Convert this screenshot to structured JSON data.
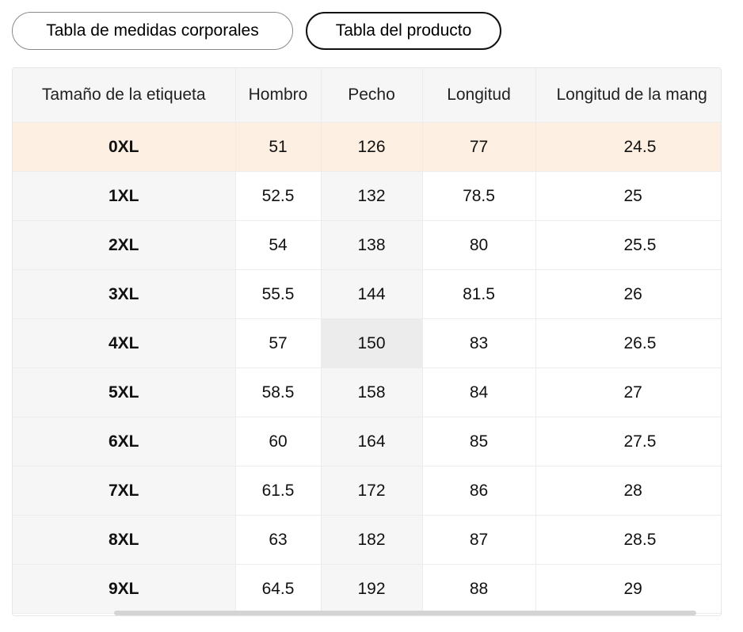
{
  "tabs": {
    "body_measurements": "Tabla de medidas corporales",
    "product": "Tabla del producto",
    "active": "product"
  },
  "table": {
    "headers": [
      "Tamaño de la etiqueta",
      "Hombro",
      "Pecho",
      "Longitud",
      "Longitud de la mang"
    ],
    "rows": [
      [
        "0XL",
        "51",
        "126",
        "77",
        "24.5"
      ],
      [
        "1XL",
        "52.5",
        "132",
        "78.5",
        "25"
      ],
      [
        "2XL",
        "54",
        "138",
        "80",
        "25.5"
      ],
      [
        "3XL",
        "55.5",
        "144",
        "81.5",
        "26"
      ],
      [
        "4XL",
        "57",
        "150",
        "83",
        "26.5"
      ],
      [
        "5XL",
        "58.5",
        "158",
        "84",
        "27"
      ],
      [
        "6XL",
        "60",
        "164",
        "85",
        "27.5"
      ],
      [
        "7XL",
        "61.5",
        "172",
        "86",
        "28"
      ],
      [
        "8XL",
        "63",
        "182",
        "87",
        "28.5"
      ],
      [
        "9XL",
        "64.5",
        "192",
        "88",
        "29"
      ]
    ],
    "highlighted_row": 0
  },
  "colors": {
    "highlight_row": "#fdefe1",
    "header_bg": "#f6f6f6",
    "border": "#ececec"
  }
}
